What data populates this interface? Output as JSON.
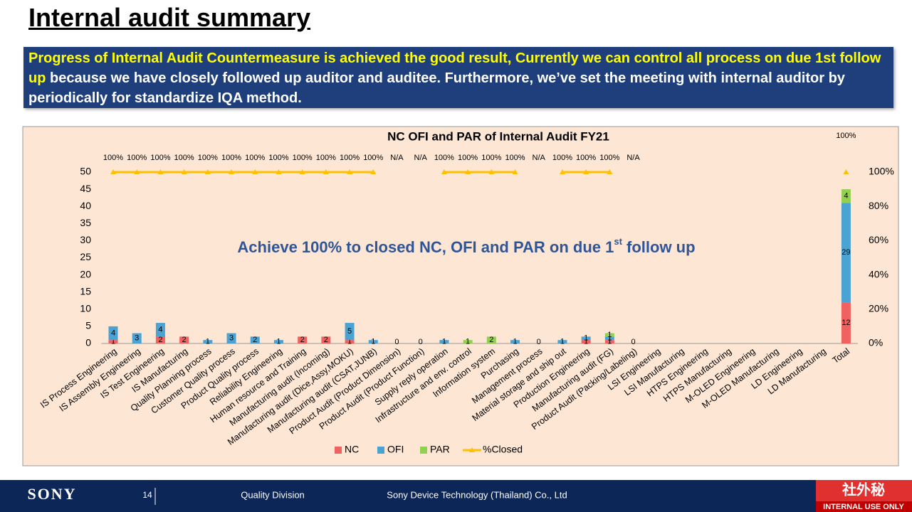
{
  "header": {
    "title": "Internal audit summary",
    "highlight": "Progress of Internal Audit Countermeasure is achieved the good result, Currently we can control all process on due 1st follow up",
    "body": " because we have closely followed up auditor and auditee. Furthermore, we’ve set the meeting with internal auditor by periodically for standardize IQA method."
  },
  "chart_data": {
    "type": "bar",
    "title": "NC OFI and PAR of Internal Audit FY21",
    "annotation": {
      "main": "Achieve 100% to closed NC, OFI and PAR on due 1",
      "sup": "st",
      "tail": " follow up"
    },
    "categories": [
      "IS Process Engineering",
      "IS Assembly Engineering",
      "IS Test Engineering",
      "IS Manufacturing",
      "Quality Planning process",
      "Customer Quality process",
      "Product Quality process",
      "Reliability Engineering",
      "Human resource and Training",
      "Manufacturing audit  (Incoming)",
      "Manufacturing audit (Dice,Assy,MOKU)",
      "Manufacturing audit (CSAT,JUNB)",
      "Product Audit (Product Dimension)",
      "Product Audit (Product Function)",
      "Supply reply operation",
      "Infrastructure and env. control",
      "Information system",
      "Purchasing",
      "Management process",
      "Material storage and ship out",
      "Production Engineering",
      "Manufacturing audit (FG)",
      "Product Audit (Packing/Labeling)",
      "LSI Engineering",
      "LSI Manufacturing",
      "HTPS Engineering",
      "HTPS Manufacturing",
      "M-OLED Engineering",
      "M-OLED Manufacturing",
      "LD Engineering",
      "LD Manufacturing",
      "Total"
    ],
    "series": [
      {
        "name": "NC",
        "color": "#f0625f",
        "values": [
          1,
          null,
          2,
          2,
          null,
          null,
          null,
          null,
          2,
          2,
          1,
          null,
          0,
          0,
          null,
          null,
          null,
          null,
          0,
          null,
          1,
          1,
          0,
          null,
          null,
          null,
          null,
          null,
          null,
          null,
          null,
          12
        ]
      },
      {
        "name": "OFI",
        "color": "#4aa3d3",
        "values": [
          4,
          3,
          4,
          null,
          1,
          3,
          2,
          1,
          null,
          null,
          5,
          1,
          null,
          null,
          1,
          null,
          null,
          1,
          null,
          1,
          1,
          1,
          null,
          null,
          null,
          null,
          null,
          null,
          null,
          null,
          null,
          29
        ]
      },
      {
        "name": "PAR",
        "color": "#92d050",
        "values": [
          null,
          null,
          null,
          null,
          null,
          null,
          null,
          null,
          null,
          null,
          null,
          null,
          null,
          null,
          null,
          1,
          2,
          null,
          null,
          null,
          null,
          1,
          null,
          null,
          null,
          null,
          null,
          null,
          null,
          null,
          null,
          4
        ]
      },
      {
        "name": "%Closed",
        "color": "#ffc000",
        "type": "line",
        "axis": "y2",
        "values": [
          100,
          100,
          100,
          100,
          100,
          100,
          100,
          100,
          100,
          100,
          100,
          100,
          null,
          null,
          100,
          100,
          100,
          100,
          null,
          100,
          100,
          100,
          null,
          null,
          null,
          null,
          null,
          null,
          null,
          null,
          null,
          100
        ],
        "value_labels": [
          "100%",
          "100%",
          "100%",
          "100%",
          "100%",
          "100%",
          "100%",
          "100%",
          "100%",
          "100%",
          "100%",
          "100%",
          "N/A",
          "N/A",
          "100%",
          "100%",
          "100%",
          "100%",
          "N/A",
          "100%",
          "100%",
          "100%",
          "N/A",
          null,
          null,
          null,
          null,
          null,
          null,
          null,
          null,
          "100%"
        ]
      }
    ],
    "ylim": [
      0,
      50
    ],
    "yticks": [
      0,
      5,
      10,
      15,
      20,
      25,
      30,
      35,
      40,
      45,
      50
    ],
    "y2lim": [
      0,
      100
    ],
    "y2ticks": [
      {
        "value": 0,
        "label": "0%"
      },
      {
        "value": 20,
        "label": "20%"
      },
      {
        "value": 40,
        "label": "40%"
      },
      {
        "value": 60,
        "label": "60%"
      },
      {
        "value": 80,
        "label": "80%"
      },
      {
        "value": 100,
        "label": "100%"
      }
    ],
    "stacked": true,
    "legend": "bottom"
  },
  "footer": {
    "brand": "SONY",
    "page": "14",
    "division": "Quality Division",
    "company": "Sony Device Technology (Thailand) Co., Ltd",
    "confidential": "社外秘",
    "notice": "INTERNAL USE ONLY"
  }
}
